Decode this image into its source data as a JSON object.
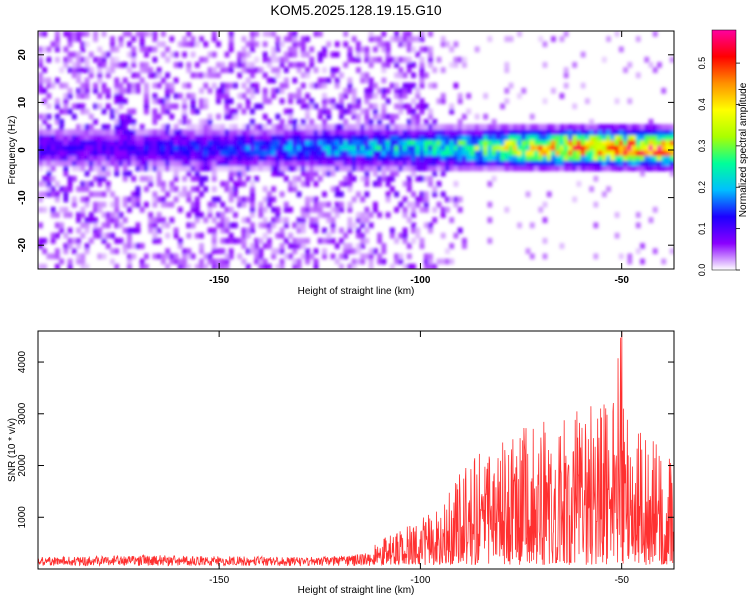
{
  "figure": {
    "title": "KOM5.2025.128.19.15.G10"
  },
  "chart_data": [
    {
      "type": "heatmap",
      "xlabel": "Height of straight line (km)",
      "ylabel": "Frequency (Hz)",
      "xlim": [
        -195,
        -37
      ],
      "ylim": [
        -25,
        25
      ],
      "x_ticks": [
        -150,
        -100,
        -50
      ],
      "y_ticks": [
        -20,
        -10,
        0,
        10,
        20
      ],
      "colorbar": {
        "label": "Normalized spectral amplitude",
        "range": [
          0,
          0.58
        ],
        "ticks": [
          0.0,
          0.1,
          0.2,
          0.3,
          0.4,
          0.5
        ],
        "colormap": [
          "#ffffff",
          "#8a00ff",
          "#1c00ff",
          "#00bfff",
          "#00ff9a",
          "#aaff00",
          "#ffff00",
          "#ff9000",
          "#ff0000",
          "#ff00a0"
        ]
      },
      "features": {
        "main_band_center_hz": 0.5,
        "main_band_halfwidth_hz": 3,
        "band_peak_amplitude": 0.5,
        "band_peak_height_km": -50,
        "noise_region_upper_km": -100
      }
    },
    {
      "type": "line",
      "xlabel": "Height of straight line (km)",
      "ylabel": "SNR (10 * v/v)",
      "xlim": [
        -195,
        -37
      ],
      "ylim": [
        0,
        4600
      ],
      "x_ticks": [
        -150,
        -100,
        -50
      ],
      "y_ticks": [
        1000,
        2000,
        3000,
        4000
      ],
      "color": "#ff3030",
      "series": [
        {
          "x": [
            -195,
            -180,
            -165,
            -150,
            -140,
            -130,
            -120,
            -112,
            -108,
            -104,
            -100,
            -96,
            -92,
            -88,
            -84,
            -80,
            -76,
            -72,
            -68,
            -64,
            -60,
            -56,
            -52,
            -50,
            -48,
            -44,
            -40,
            -37
          ],
          "y": [
            230,
            250,
            270,
            250,
            240,
            230,
            250,
            330,
            550,
            700,
            820,
            1150,
            1500,
            1900,
            2150,
            2350,
            2500,
            2600,
            2750,
            2900,
            3000,
            3000,
            3050,
            4580,
            3050,
            2500,
            2100,
            1900
          ]
        }
      ]
    }
  ]
}
